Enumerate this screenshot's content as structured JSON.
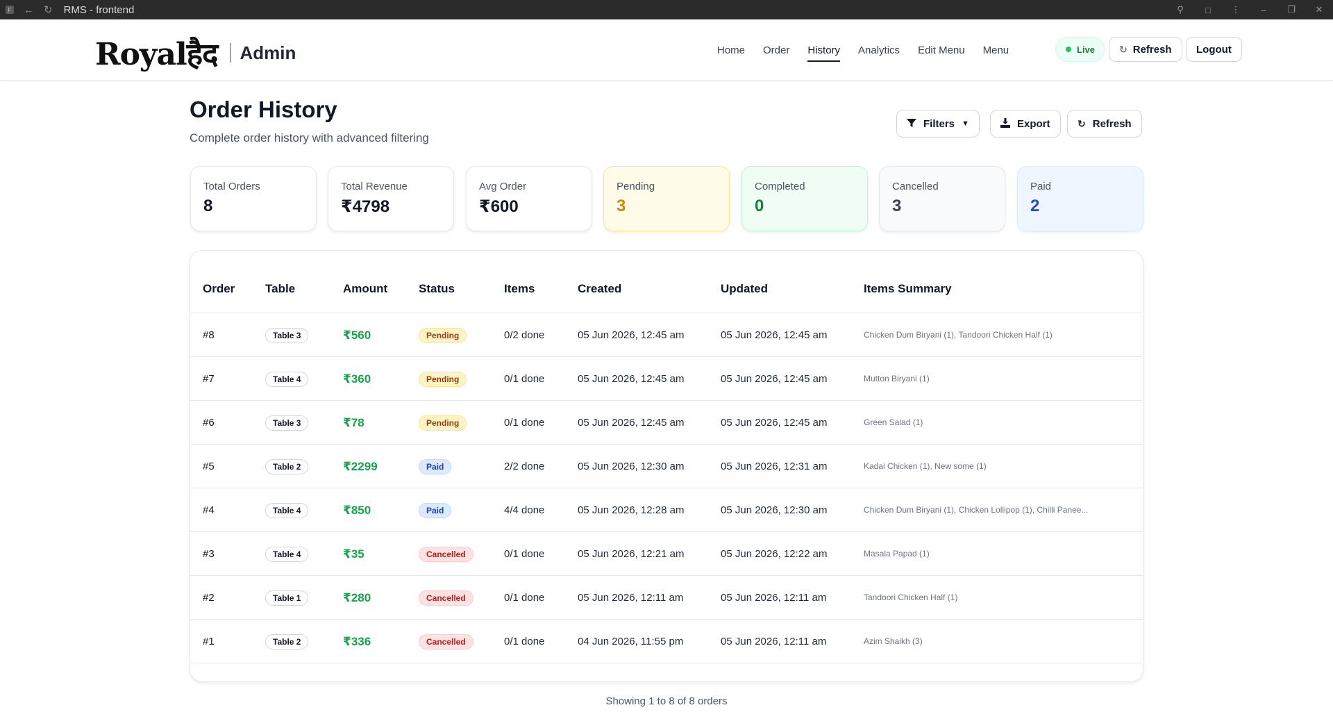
{
  "browser": {
    "title": "RMS - frontend",
    "favicon": "F"
  },
  "header": {
    "logo_text": "Royalहैद",
    "admin_label": "Admin",
    "nav": [
      "Home",
      "Order",
      "History",
      "Analytics",
      "Edit Menu",
      "Menu"
    ],
    "active_nav": "History",
    "live_label": "Live",
    "refresh_label": "Refresh",
    "logout_label": "Logout"
  },
  "page": {
    "title": "Order History",
    "subtitle": "Complete order history with advanced filtering",
    "filters_label": "Filters",
    "export_label": "Export",
    "refresh_label": "Refresh"
  },
  "stats": [
    {
      "label": "Total Orders",
      "value": "8"
    },
    {
      "label": "Total Revenue",
      "value": "₹4798"
    },
    {
      "label": "Avg Order",
      "value": "₹600"
    },
    {
      "label": "Pending",
      "value": "3"
    },
    {
      "label": "Completed",
      "value": "0"
    },
    {
      "label": "Cancelled",
      "value": "3"
    },
    {
      "label": "Paid",
      "value": "2"
    }
  ],
  "table": {
    "headers": [
      "Order",
      "Table",
      "Amount",
      "Status",
      "Items",
      "Created",
      "Updated",
      "Items Summary"
    ],
    "rows": [
      {
        "order": "#8",
        "table": "Table 3",
        "amount": "₹560",
        "status": "Pending",
        "items": "0/2 done",
        "created": "05 Jun 2026, 12:45 am",
        "updated": "05 Jun 2026, 12:45 am",
        "summary": "Chicken Dum Biryani (1), Tandoori Chicken Half (1)"
      },
      {
        "order": "#7",
        "table": "Table 4",
        "amount": "₹360",
        "status": "Pending",
        "items": "0/1 done",
        "created": "05 Jun 2026, 12:45 am",
        "updated": "05 Jun 2026, 12:45 am",
        "summary": "Mutton Biryani (1)"
      },
      {
        "order": "#6",
        "table": "Table 3",
        "amount": "₹78",
        "status": "Pending",
        "items": "0/1 done",
        "created": "05 Jun 2026, 12:45 am",
        "updated": "05 Jun 2026, 12:45 am",
        "summary": "Green Salad (1)"
      },
      {
        "order": "#5",
        "table": "Table 2",
        "amount": "₹2299",
        "status": "Paid",
        "items": "2/2 done",
        "created": "05 Jun 2026, 12:30 am",
        "updated": "05 Jun 2026, 12:31 am",
        "summary": "Kadai Chicken (1), New some (1)"
      },
      {
        "order": "#4",
        "table": "Table 4",
        "amount": "₹850",
        "status": "Paid",
        "items": "4/4 done",
        "created": "05 Jun 2026, 12:28 am",
        "updated": "05 Jun 2026, 12:30 am",
        "summary": "Chicken Dum Biryani (1), Chicken Lollipop (1), Chilli Panee..."
      },
      {
        "order": "#3",
        "table": "Table 4",
        "amount": "₹35",
        "status": "Cancelled",
        "items": "0/1 done",
        "created": "05 Jun 2026, 12:21 am",
        "updated": "05 Jun 2026, 12:22 am",
        "summary": "Masala Papad (1)"
      },
      {
        "order": "#2",
        "table": "Table 1",
        "amount": "₹280",
        "status": "Cancelled",
        "items": "0/1 done",
        "created": "05 Jun 2026, 12:11 am",
        "updated": "05 Jun 2026, 12:11 am",
        "summary": "Tandoori Chicken Half (1)"
      },
      {
        "order": "#1",
        "table": "Table 2",
        "amount": "₹336",
        "status": "Cancelled",
        "items": "0/1 done",
        "created": "04 Jun 2026, 11:55 pm",
        "updated": "05 Jun 2026, 12:11 am",
        "summary": "Azim Shaikh (3)"
      }
    ]
  },
  "footer": {
    "showing": "Showing 1 to 8 of 8 orders"
  },
  "colors": {
    "amount": "#16a34a",
    "pending": "#ca8a04",
    "completed": "#15803d",
    "paid": "#1d4ed8"
  }
}
